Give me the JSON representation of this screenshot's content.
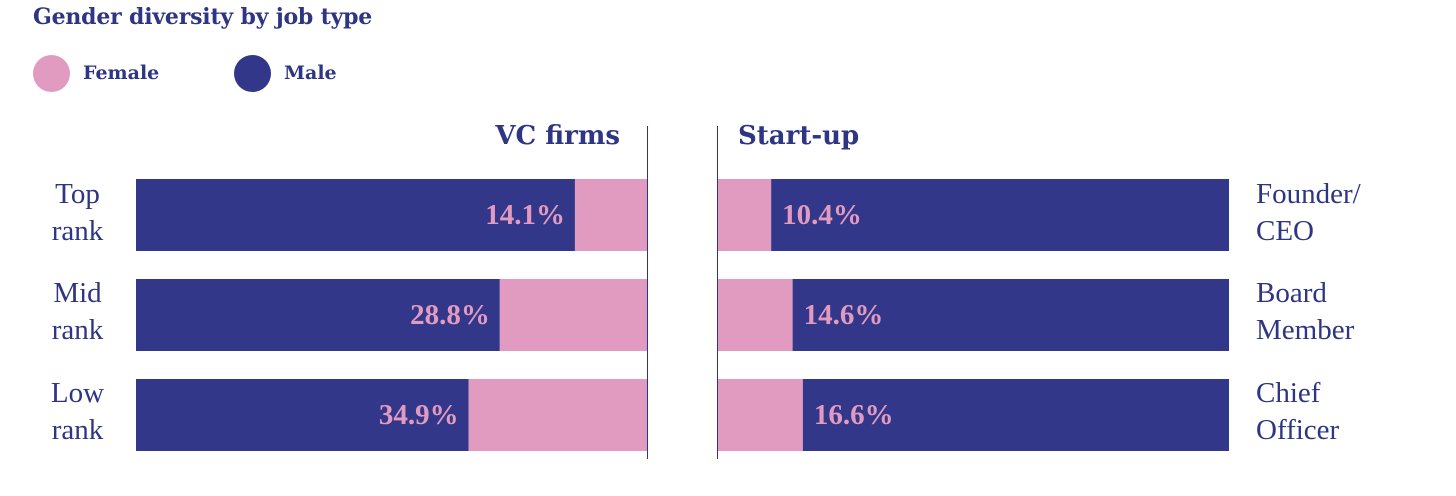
{
  "colors": {
    "female": "#e29bc0",
    "male": "#333789",
    "text": "#2e3583"
  },
  "chart_data": {
    "type": "bar",
    "title": "Gender diversity by job type",
    "legend": {
      "position": "top-left",
      "entries": [
        {
          "name": "Female",
          "color": "#e29bc0"
        },
        {
          "name": "Male",
          "color": "#333789"
        }
      ]
    },
    "panels": [
      {
        "name": "VC firms",
        "orientation": "horizontal-stacked-100",
        "categories": [
          "Top rank",
          "Mid rank",
          "Low rank"
        ],
        "category_lines": [
          [
            "Top",
            "rank"
          ],
          [
            "Mid",
            "rank"
          ],
          [
            "Low",
            "rank"
          ]
        ],
        "series": [
          {
            "name": "Female",
            "values": [
              14.1,
              28.8,
              34.9
            ]
          },
          {
            "name": "Male",
            "values": [
              85.9,
              71.2,
              65.1
            ]
          }
        ],
        "value_labels": [
          "14.1%",
          "28.8%",
          "34.9%"
        ],
        "female_side": "right"
      },
      {
        "name": "Start-up",
        "orientation": "horizontal-stacked-100",
        "categories": [
          "Founder/ CEO",
          "Board Member",
          "Chief Officer"
        ],
        "category_lines": [
          [
            "Founder/",
            "CEO"
          ],
          [
            "Board",
            "Member"
          ],
          [
            "Chief",
            "Officer"
          ]
        ],
        "series": [
          {
            "name": "Female",
            "values": [
              10.4,
              14.6,
              16.6
            ]
          },
          {
            "name": "Male",
            "values": [
              89.6,
              85.4,
              83.4
            ]
          }
        ],
        "value_labels": [
          "10.4%",
          "14.6%",
          "16.6%"
        ],
        "female_side": "left"
      }
    ],
    "xlim": [
      0,
      100
    ]
  }
}
